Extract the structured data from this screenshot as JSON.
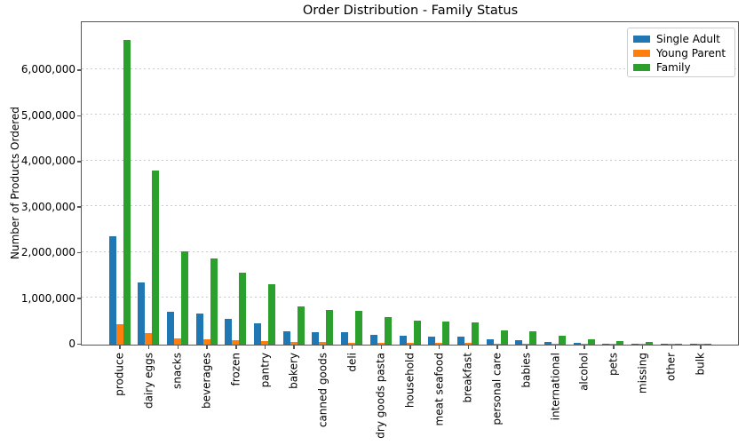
{
  "chart_data": {
    "type": "bar",
    "title": "Order Distribution - Family Status",
    "xlabel": "",
    "ylabel": "Number of Products Ordered",
    "categories": [
      "produce",
      "dairy eggs",
      "snacks",
      "beverages",
      "frozen",
      "pantry",
      "bakery",
      "canned goods",
      "deli",
      "dry goods pasta",
      "household",
      "meat seafood",
      "breakfast",
      "personal care",
      "babies",
      "international",
      "alcohol",
      "pets",
      "missing",
      "other",
      "bulk"
    ],
    "series": [
      {
        "name": "Single Adult",
        "color": "#1f77b4",
        "values": [
          2370000,
          1354000,
          722000,
          673000,
          559000,
          469000,
          294000,
          267000,
          263000,
          217000,
          185000,
          177000,
          177000,
          112000,
          106000,
          67000,
          45000,
          24000,
          18000,
          9000,
          9000
        ]
      },
      {
        "name": "Young Parent",
        "color": "#ff7f0e",
        "values": [
          440000,
          250000,
          133000,
          124000,
          103000,
          86000,
          54000,
          49000,
          48000,
          40000,
          34000,
          33000,
          33000,
          21000,
          19000,
          12000,
          8000,
          4000,
          3000,
          2000,
          2000
        ]
      },
      {
        "name": "Family",
        "color": "#2ca02c",
        "values": [
          6670000,
          3810000,
          2033000,
          1894000,
          1574000,
          1320000,
          828000,
          752000,
          740000,
          610000,
          520000,
          499000,
          485000,
          315000,
          298000,
          190000,
          115000,
          70000,
          55000,
          26000,
          24000
        ]
      }
    ],
    "ylim": [
      0,
      7040000
    ],
    "yticks": [
      0,
      1000000,
      2000000,
      3000000,
      4000000,
      5000000,
      6000000
    ],
    "ytick_labels": [
      "0",
      "1,000,000",
      "2,000,000",
      "3,000,000",
      "4,000,000",
      "5,000,000",
      "6,000,000"
    ],
    "grid": "horizontal-dashed",
    "legend_position": "upper-right",
    "x_tick_rotation": 90
  }
}
